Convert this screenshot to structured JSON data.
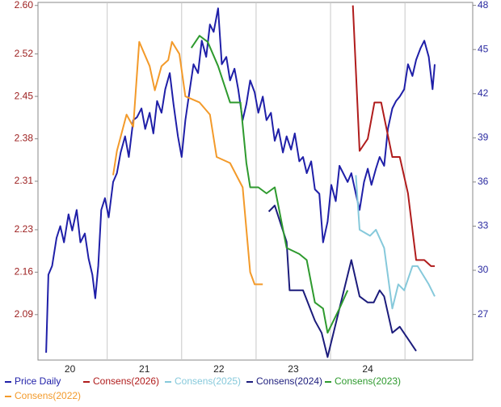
{
  "chart_data": {
    "type": "line",
    "xlim": [
      2020.07,
      2025.91
    ],
    "xticks": [
      {
        "value": 2020.5,
        "label": "20"
      },
      {
        "value": 2021.5,
        "label": "21"
      },
      {
        "value": 2022.5,
        "label": "22"
      },
      {
        "value": 2023.5,
        "label": "23"
      },
      {
        "value": 2024.5,
        "label": "24"
      }
    ],
    "xgrid": [
      2021,
      2022,
      2023,
      2024,
      2025
    ],
    "ylim": [
      2.015,
      2.605
    ],
    "yticks": [
      2.09,
      2.16,
      2.23,
      2.31,
      2.38,
      2.45,
      2.52,
      {
        "value": 2.6,
        "label": "2.60"
      }
    ],
    "y2lim": [
      23.9,
      48.2
    ],
    "y2ticks": [
      27,
      30,
      33,
      36,
      39,
      42,
      45,
      48
    ],
    "series": [
      {
        "name": "Price Daily",
        "color": "#1f1fa8",
        "axis": "y2",
        "x": [
          2020.18,
          2020.21,
          2020.26,
          2020.32,
          2020.37,
          2020.42,
          2020.48,
          2020.53,
          2020.59,
          2020.64,
          2020.7,
          2020.75,
          2020.8,
          2020.84,
          2020.88,
          2020.92,
          2020.97,
          2021.02,
          2021.08,
          2021.13,
          2021.18,
          2021.24,
          2021.29,
          2021.35,
          2021.4,
          2021.46,
          2021.51,
          2021.57,
          2021.62,
          2021.67,
          2021.73,
          2021.78,
          2021.84,
          2021.89,
          2021.95,
          2022.0,
          2022.05,
          2022.11,
          2022.16,
          2022.22,
          2022.27,
          2022.33,
          2022.38,
          2022.43,
          2022.49,
          2022.54,
          2022.6,
          2022.65,
          2022.71,
          2022.76,
          2022.82,
          2022.87,
          2022.92,
          2022.98,
          2023.03,
          2023.09,
          2023.14,
          2023.2,
          2023.25,
          2023.3,
          2023.36,
          2023.41,
          2023.47,
          2023.52,
          2023.58,
          2023.63,
          2023.68,
          2023.74,
          2023.79,
          2023.85,
          2023.9,
          2023.96,
          2024.01,
          2024.07,
          2024.12,
          2024.17,
          2024.23,
          2024.28,
          2024.34,
          2024.39,
          2024.45,
          2024.5,
          2024.55,
          2024.61,
          2024.66,
          2024.72,
          2024.77,
          2024.83,
          2024.88,
          2024.93,
          2024.99,
          2025.04,
          2025.1,
          2025.15,
          2025.21,
          2025.26,
          2025.32,
          2025.37,
          2025.4
        ],
        "values": [
          24.4,
          29.7,
          30.3,
          32.2,
          33.0,
          31.9,
          33.8,
          32.7,
          34.1,
          31.9,
          32.5,
          30.8,
          29.7,
          28.1,
          30.3,
          34.1,
          34.9,
          33.6,
          36.0,
          36.6,
          38.0,
          39.1,
          37.7,
          40.2,
          40.4,
          41.0,
          39.6,
          40.7,
          39.3,
          41.5,
          40.7,
          42.3,
          43.4,
          41.3,
          39.1,
          37.7,
          40.2,
          42.3,
          44.0,
          43.4,
          45.6,
          44.5,
          46.7,
          46.2,
          47.8,
          44.0,
          44.5,
          42.9,
          43.7,
          42.3,
          40.2,
          41.3,
          42.9,
          42.1,
          40.7,
          41.8,
          40.2,
          40.7,
          38.8,
          39.6,
          38.0,
          39.1,
          38.2,
          39.3,
          37.4,
          37.7,
          36.6,
          37.4,
          35.5,
          35.2,
          31.9,
          33.3,
          35.8,
          34.7,
          37.1,
          36.6,
          36.0,
          36.6,
          35.2,
          34.1,
          36.0,
          36.9,
          35.8,
          36.9,
          37.7,
          37.1,
          39.6,
          41.0,
          41.5,
          41.8,
          42.3,
          44.0,
          43.2,
          44.3,
          45.1,
          45.6,
          44.5,
          42.3,
          44.0
        ]
      },
      {
        "name": "Consens(2026)",
        "color": "#b01c1c",
        "x": [
          2024.3,
          2024.39,
          2024.5,
          2024.59,
          2024.68,
          2024.83,
          2024.93,
          2025.04,
          2025.15,
          2025.26,
          2025.35,
          2025.4
        ],
        "values": [
          2.6,
          2.36,
          2.38,
          2.44,
          2.44,
          2.35,
          2.35,
          2.29,
          2.18,
          2.18,
          2.17,
          2.17
        ]
      },
      {
        "name": "Consens(2025)",
        "color": "#86c9db",
        "x": [
          2024.34,
          2024.39,
          2024.53,
          2024.61,
          2024.72,
          2024.83,
          2024.91,
          2024.99,
          2025.1,
          2025.17,
          2025.32,
          2025.4
        ],
        "values": [
          2.32,
          2.23,
          2.22,
          2.23,
          2.2,
          2.1,
          2.14,
          2.13,
          2.17,
          2.17,
          2.14,
          2.12
        ]
      },
      {
        "name": "Consens(2024)",
        "color": "#1c1c7c",
        "x": [
          2023.17,
          2023.25,
          2023.41,
          2023.45,
          2023.63,
          2023.79,
          2023.88,
          2023.96,
          2024.12,
          2024.28,
          2024.39,
          2024.5,
          2024.58,
          2024.66,
          2024.72,
          2024.83,
          2024.93,
          2025.04,
          2025.15
        ],
        "values": [
          2.26,
          2.27,
          2.21,
          2.13,
          2.13,
          2.08,
          2.06,
          2.02,
          2.1,
          2.18,
          2.12,
          2.11,
          2.11,
          2.13,
          2.12,
          2.06,
          2.07,
          2.05,
          2.03
        ]
      },
      {
        "name": "Consens(2023)",
        "color": "#2e9a2e",
        "x": [
          2022.13,
          2022.24,
          2022.35,
          2022.49,
          2022.65,
          2022.79,
          2022.87,
          2022.92,
          2023.03,
          2023.14,
          2023.25,
          2023.41,
          2023.58,
          2023.68,
          2023.79,
          2023.9,
          2023.96,
          2024.12,
          2024.23
        ],
        "values": [
          2.53,
          2.55,
          2.54,
          2.5,
          2.44,
          2.44,
          2.34,
          2.3,
          2.3,
          2.29,
          2.3,
          2.2,
          2.19,
          2.18,
          2.11,
          2.1,
          2.06,
          2.1,
          2.13
        ]
      },
      {
        "name": "Consens(2022)",
        "color": "#f39a2a",
        "x": [
          2021.08,
          2021.13,
          2021.26,
          2021.35,
          2021.43,
          2021.57,
          2021.64,
          2021.73,
          2021.82,
          2021.87,
          2021.97,
          2022.05,
          2022.24,
          2022.38,
          2022.47,
          2022.65,
          2022.82,
          2022.92,
          2022.98,
          2023.09
        ],
        "values": [
          2.32,
          2.36,
          2.42,
          2.4,
          2.54,
          2.5,
          2.46,
          2.5,
          2.51,
          2.54,
          2.52,
          2.45,
          2.44,
          2.42,
          2.35,
          2.34,
          2.3,
          2.16,
          2.14,
          2.14
        ]
      }
    ]
  }
}
